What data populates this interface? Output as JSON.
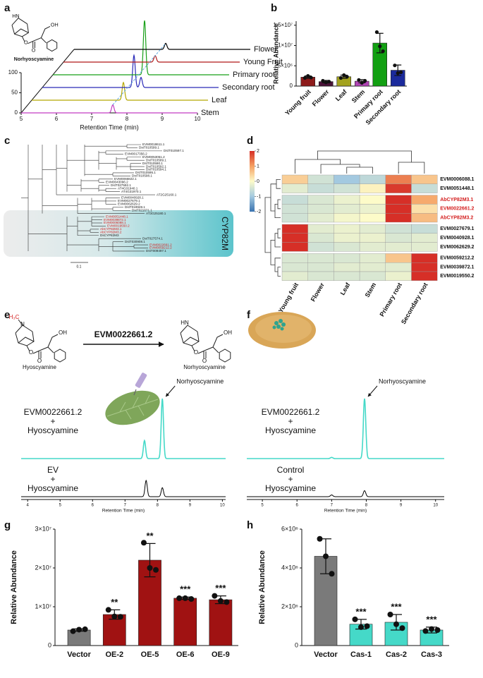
{
  "panel_labels": [
    "a",
    "b",
    "c",
    "d",
    "e",
    "f",
    "g",
    "h"
  ],
  "chart_data": [
    {
      "type": "line",
      "layout": "waterfall",
      "xlabel": "Retention Time (min)",
      "xlim": [
        5,
        10
      ],
      "xticks": [
        5,
        6,
        7,
        8,
        9,
        10
      ],
      "ylim": [
        0,
        100
      ],
      "yticks": [
        0,
        50,
        100
      ],
      "structure": {
        "nh": "HN",
        "o": "O",
        "oh": "OH",
        "name": "Norhyoscyamine"
      },
      "series": [
        {
          "name": "Stem",
          "color": "#c23cc2",
          "peaks": [
            [
              7.6,
              20
            ]
          ]
        },
        {
          "name": "Leaf",
          "color": "#b5a800",
          "peaks": [
            [
              7.6,
              44
            ]
          ]
        },
        {
          "name": "Secondary root",
          "color": "#2a2ab8",
          "peaks": [
            [
              7.6,
              80
            ],
            [
              7.8,
              25
            ]
          ]
        },
        {
          "name": "Primary root",
          "color": "#18a018",
          "peaks": [
            [
              7.6,
              135
            ]
          ]
        },
        {
          "name": "Young Fruit",
          "color": "#b01818",
          "peaks": [
            [
              7.6,
              16
            ]
          ]
        },
        {
          "name": "Flower",
          "color": "#000000",
          "peaks": [
            [
              7.6,
              15
            ]
          ]
        }
      ]
    },
    {
      "type": "bar",
      "ylabel": "Relative Abundance",
      "categories": [
        "Young fruit",
        "Flower",
        "Leaf",
        "Stem",
        "Primary root",
        "Secondary root"
      ],
      "values": [
        2200000,
        1100000,
        2300000,
        1200000,
        10600000,
        3900000
      ],
      "errors": [
        300000,
        300000,
        400000,
        400000,
        2400000,
        1300000
      ],
      "points": [
        [
          2000000,
          2500000,
          2100000
        ],
        [
          1300000,
          900000,
          1100000
        ],
        [
          2000000,
          2700000,
          2300000
        ],
        [
          1500000,
          800000,
          1300000
        ],
        [
          13300000,
          9800000,
          8600000
        ],
        [
          5100000,
          3200000,
          3400000
        ]
      ],
      "colors": [
        "#8e1b1b",
        "#4a1238",
        "#a3a21e",
        "#b145b5",
        "#12a012",
        "#1b2a9c"
      ],
      "ylim": [
        0,
        16000000
      ],
      "yticks": [
        0,
        {
          "value": 5000000,
          "label": "5×10⁶"
        },
        {
          "value": 10000000,
          "label": "1×10⁷"
        },
        {
          "value": 15000000,
          "label": "1.5×10⁷"
        }
      ]
    },
    {
      "type": "heatmap",
      "columns": [
        "Young fruit",
        "Flower",
        "Leaf",
        "Stem",
        "Primary root",
        "Secondary root"
      ],
      "rows": [
        "EVM0006088.1",
        "EVM0051448.1",
        "AbCYP82M3.1",
        "EVM0022661.2",
        "AbCYP82M3.2",
        "EVM0027679.1",
        "EVM0040928.1",
        "EVM0062629.2",
        "EVM0059212.2",
        "EVM0039872.1",
        "EVM0019550.2"
      ],
      "row_colors": [
        "#111111",
        "#111111",
        "#d42020",
        "#d42020",
        "#d42020",
        "#111111",
        "#111111",
        "#111111",
        "#111111",
        "#111111",
        "#111111"
      ],
      "values": [
        [
          0.5,
          -0.5,
          -1,
          -0.7,
          1.3,
          0.6
        ],
        [
          -0.3,
          -0.6,
          -0.5,
          0.1,
          1.9,
          -0.6
        ],
        [
          -0.6,
          -0.4,
          -0.2,
          0,
          2,
          0.9
        ],
        [
          -0.5,
          -0.4,
          -0.3,
          -0.2,
          2,
          0.3
        ],
        [
          -0.5,
          -0.3,
          -0.1,
          0,
          2,
          0.7
        ],
        [
          2,
          -0.3,
          -0.2,
          -0.3,
          -0.5,
          -0.6
        ],
        [
          2,
          -0.4,
          -0.2,
          -0.2,
          -0.4,
          -0.3
        ],
        [
          2,
          -0.5,
          -0.4,
          -0.3,
          -0.3,
          -0.3
        ],
        [
          -0.4,
          -0.4,
          -0.4,
          -0.3,
          0.6,
          2
        ],
        [
          -0.4,
          -0.4,
          -0.3,
          -0.3,
          -0.3,
          2
        ],
        [
          -0.3,
          -0.4,
          -0.4,
          -0.4,
          -0.2,
          2
        ]
      ],
      "colorscale": [
        [
          -2,
          "#3a73b0"
        ],
        [
          -1,
          "#a3c9e0"
        ],
        [
          0,
          "#fdfbc9"
        ],
        [
          1,
          "#f5a163"
        ],
        [
          2,
          "#d62f27"
        ]
      ],
      "zlim": [
        -2,
        2
      ],
      "zticks": [
        2,
        1,
        0,
        -1,
        -2
      ]
    },
    {
      "type": "line",
      "layout": "stacked",
      "xlabel": "Retention Time (min)",
      "xlim": [
        3.8,
        10.1
      ],
      "xticks": [
        4,
        5,
        6,
        7,
        8,
        9,
        10
      ],
      "annotation": "Norhyoscyamine",
      "series": [
        {
          "label": [
            "EVM0022661.2",
            "+",
            "Hyoscyamine"
          ],
          "color": "#45d9c8",
          "peaks": [
            [
              8.15,
              100
            ],
            [
              7.6,
              30
            ]
          ]
        },
        {
          "label": [
            "EV",
            "+",
            "Hyoscyamine"
          ],
          "color": "#000000",
          "peaks": [
            [
              7.65,
              27
            ],
            [
              8.15,
              15
            ]
          ]
        }
      ]
    },
    {
      "type": "line",
      "layout": "stacked",
      "xlabel": "Retention Time (min)",
      "xlim": [
        4.55,
        10.25
      ],
      "xticks": [
        5,
        6,
        7,
        8,
        9,
        10
      ],
      "annotation": "Norhyoscyamine",
      "series": [
        {
          "label": [
            "EVM0022661.2",
            "+",
            "Hyoscyamine"
          ],
          "color": "#45d9c8",
          "peaks": [
            [
              7.95,
              100
            ],
            [
              7.0,
              2
            ]
          ]
        },
        {
          "label": [
            "Control",
            "+",
            "Hyoscyamine"
          ],
          "color": "#000000",
          "peaks": [
            [
              7.0,
              3
            ],
            [
              7.95,
              10
            ]
          ]
        }
      ]
    },
    {
      "type": "bar",
      "ylabel": "Relative Abundance",
      "categories": [
        "Vector",
        "OE-2",
        "OE-5",
        "OE-6",
        "OE-9"
      ],
      "values": [
        4000000,
        8000000,
        22000000,
        12200000,
        11800000
      ],
      "errors": [
        300000,
        1200000,
        4300000,
        300000,
        1000000
      ],
      "points": [
        [
          3700000,
          4100000,
          4200000
        ],
        [
          9200000,
          7500000,
          7400000
        ],
        [
          26500000,
          20000000,
          19500000
        ],
        [
          12200000,
          12200000,
          12000000
        ],
        [
          12800000,
          11500000,
          11200000
        ]
      ],
      "colors": [
        "#7a7a7a",
        "#a01212",
        "#a01212",
        "#a01212",
        "#a01212"
      ],
      "annotations": [
        null,
        "**",
        "**",
        "***",
        "***"
      ],
      "ylim": [
        0,
        30000000
      ],
      "yticks": [
        0,
        {
          "value": 10000000,
          "label": "1×10⁷"
        },
        {
          "value": 20000000,
          "label": "2×10⁷"
        },
        {
          "value": 30000000,
          "label": "3×10⁷"
        }
      ]
    },
    {
      "type": "bar",
      "ylabel": "Relative Abundance",
      "categories": [
        "Vector",
        "Cas-1",
        "Cas-2",
        "Cas-3"
      ],
      "values": [
        4600000,
        1100000,
        1200000,
        800000
      ],
      "errors": [
        900000,
        250000,
        400000,
        150000
      ],
      "points": [
        [
          5500000,
          4600000,
          3700000
        ],
        [
          1350000,
          950000,
          1000000
        ],
        [
          1600000,
          1100000,
          900000
        ],
        [
          750000,
          850000,
          800000
        ]
      ],
      "colors": [
        "#7a7a7a",
        "#45d9c8",
        "#45d9c8",
        "#45d9c8"
      ],
      "annotations": [
        null,
        "***",
        "***",
        "***"
      ],
      "ylim": [
        0,
        6000000
      ],
      "yticks": [
        0,
        {
          "value": 2000000,
          "label": "2×10⁶"
        },
        {
          "value": 4000000,
          "label": "4×10⁶"
        },
        {
          "value": 6000000,
          "label": "6×10⁶"
        }
      ]
    }
  ],
  "tree": {
    "clade_label": "CYP82M",
    "scale_label": "0.1",
    "leaves": [
      {
        "label": "EVM0018611.1",
        "color": "#222"
      },
      {
        "label": "DstT010599.1",
        "color": "#222"
      },
      {
        "label": "DstT010597.1",
        "color": "#222"
      },
      {
        "label": "EVM0017356.2",
        "color": "#222"
      },
      {
        "label": "EVM0053051.2",
        "color": "#222"
      },
      {
        "label": "DstT010589.1",
        "color": "#222"
      },
      {
        "label": "DstT010590.1",
        "color": "#222"
      },
      {
        "label": "DstT010592.1",
        "color": "#222"
      },
      {
        "label": "DstT010594.1",
        "color": "#222"
      },
      {
        "label": "DstT010595.1",
        "color": "#222"
      },
      {
        "label": "DstT010598.1",
        "color": "#222"
      },
      {
        "label": "EVM0066822.1",
        "color": "#222"
      },
      {
        "label": "EVM0043096.2",
        "color": "#222"
      },
      {
        "label": "DstT027592.1",
        "color": "#222"
      },
      {
        "label": "AT4G31940.1",
        "color": "#222"
      },
      {
        "label": "AT4G31970.1",
        "color": "#222"
      },
      {
        "label": "AT2G25160.1",
        "color": "#222"
      },
      {
        "label": "EVM0040928.1",
        "color": "#222"
      },
      {
        "label": "EVM0027679.1",
        "color": "#222"
      },
      {
        "label": "EVM0062629.2",
        "color": "#222"
      },
      {
        "label": "DstT019928.1",
        "color": "#222"
      },
      {
        "label": "DstT021671.1",
        "color": "#222"
      },
      {
        "label": "AT3G25180.1",
        "color": "#222"
      },
      {
        "label": "EVM0051448.1",
        "color": "#d42020"
      },
      {
        "label": "EVM0039872.1",
        "color": "#d42020"
      },
      {
        "label": "EVM0006088.1",
        "color": "#d42020"
      },
      {
        "label": "EVM0019550.2",
        "color": "#d42020"
      },
      {
        "label": "AbCYP82M3.1",
        "color": "#d42020"
      },
      {
        "label": "AbCYP82M3.2",
        "color": "#d42020"
      },
      {
        "label": "DsCYP82M3",
        "color": "#222"
      },
      {
        "label": "DstT027574.1",
        "color": "#222"
      },
      {
        "label": "DstT030908.1",
        "color": "#222"
      },
      {
        "label": "EVM0022661.2",
        "color": "#d42020"
      },
      {
        "label": "EVM0059212.2",
        "color": "#d42020"
      },
      {
        "label": "DstT009497.1",
        "color": "#222"
      }
    ]
  },
  "scheme": {
    "enzyme": "EVM0022661.2",
    "substrate": {
      "name": "Hyoscyamine",
      "methyl": "H₃C",
      "n": "N",
      "o": "O",
      "oh": "OH"
    },
    "product": {
      "name": "Norhyoscyamine",
      "nh": "HN",
      "o": "O",
      "oh": "OH"
    }
  }
}
